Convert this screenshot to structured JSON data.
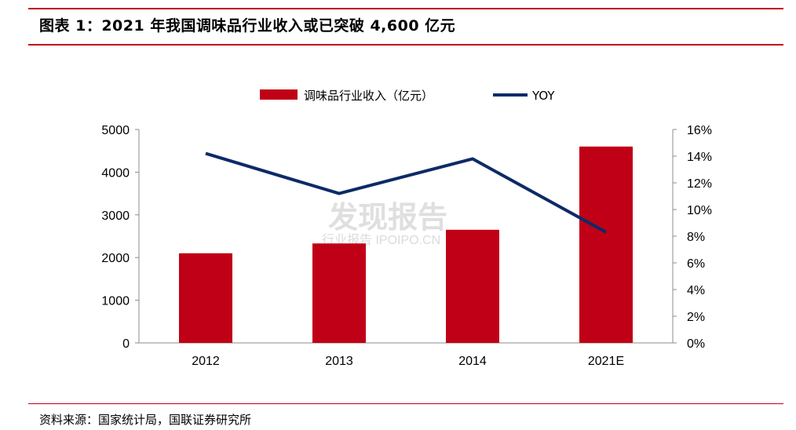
{
  "header": {
    "title": "图表 1：2021 年我国调味品行业收入或已突破 4,600 亿元"
  },
  "footer": {
    "source": "资料来源：国家统计局，国联证券研究所"
  },
  "watermark": {
    "main": "发现报告",
    "sub": "行业报告 IPOIPO.CN"
  },
  "colors": {
    "bar": "#c00016",
    "line": "#0d2a68",
    "rule": "#c0001f"
  },
  "chart_data": {
    "type": "bar",
    "categories": [
      "2012",
      "2013",
      "2014",
      "2021E"
    ],
    "series": [
      {
        "name": "调味品行业收入（亿元）",
        "type": "bar",
        "axis": "left",
        "values": [
          2100,
          2330,
          2650,
          4600
        ]
      },
      {
        "name": "YOY",
        "type": "line",
        "axis": "right",
        "values": [
          0.142,
          0.112,
          0.138,
          0.083
        ]
      }
    ],
    "y_left": {
      "min": 0,
      "max": 5000,
      "ticks": [
        "0",
        "1000",
        "2000",
        "3000",
        "4000",
        "5000"
      ]
    },
    "y_right": {
      "min": 0,
      "max": 0.16,
      "ticks": [
        "0%",
        "2%",
        "4%",
        "6%",
        "8%",
        "10%",
        "12%",
        "14%",
        "16%"
      ]
    },
    "legend_position": "top-center",
    "grid": false
  }
}
